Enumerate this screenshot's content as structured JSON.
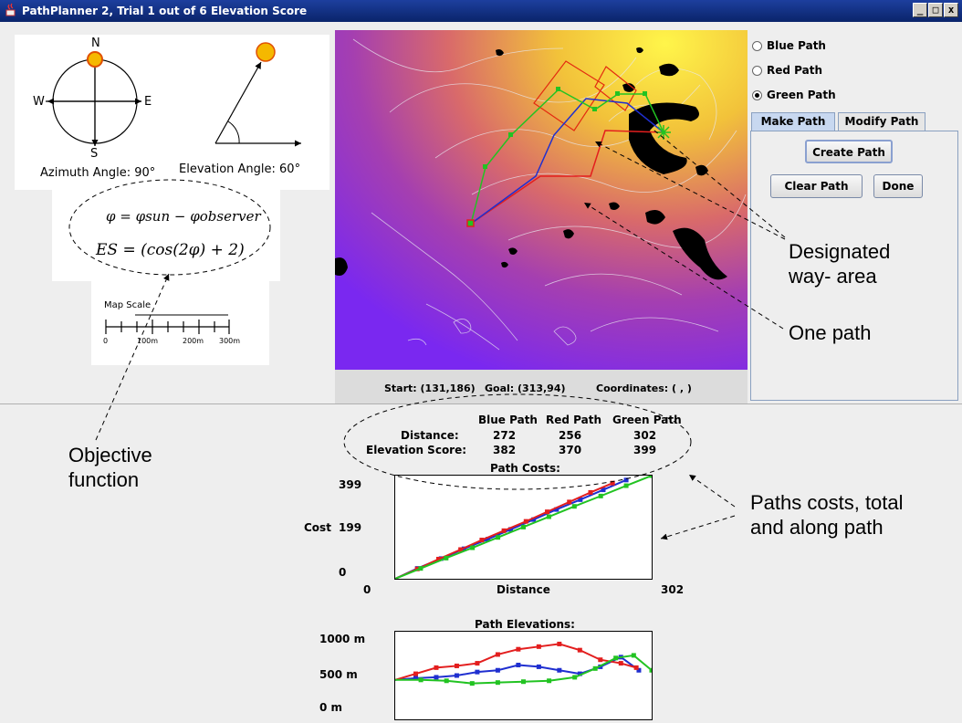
{
  "window": {
    "title": "PathPlanner 2, Trial 1 out of 6 Elevation Score",
    "minimize": "_",
    "maximize": "□",
    "close": "x"
  },
  "sun_diagram": {
    "north": "N",
    "south": "S",
    "east": "E",
    "west": "W",
    "azimuth_label": "Azimuth Angle: 90°",
    "elevation_label": "Elevation Angle: 60°"
  },
  "formula": {
    "line1": "φ = φsun − φobserver",
    "line2": "ES = (cos(2φ) + 2)"
  },
  "map_scale": {
    "title": "Map Scale",
    "ticks": [
      "0",
      "100m",
      "200m",
      "300m"
    ]
  },
  "status": {
    "start": "Start: (131,186)",
    "goal": "Goal: (313,94)",
    "coordinates": "Coordinates: ( , )"
  },
  "controls": {
    "radios": [
      {
        "label": "Blue Path",
        "selected": false
      },
      {
        "label": "Red Path",
        "selected": false
      },
      {
        "label": "Green Path",
        "selected": true
      }
    ],
    "tabs": [
      {
        "label": "Make Path",
        "active": true
      },
      {
        "label": "Modify Path",
        "active": false
      }
    ],
    "create_button": "Create Path",
    "clear_button": "Clear Path",
    "done_button": "Done"
  },
  "annotations": {
    "waypoint_area": [
      "Designated",
      "way- area"
    ],
    "one_path": "One path",
    "objective": [
      "Objective",
      "function"
    ],
    "costs": [
      "Paths costs, total",
      "and along path"
    ]
  },
  "summary": {
    "columns": [
      "Blue Path",
      "Red Path",
      "Green Path"
    ],
    "rows": [
      {
        "label": "Distance:",
        "values": [
          "272",
          "256",
          "302"
        ]
      },
      {
        "label": "Elevation Score:",
        "values": [
          "382",
          "370",
          "399"
        ]
      }
    ]
  },
  "cost_chart": {
    "title": "Path Costs:",
    "ylabel": "Cost",
    "xlabel": "Distance",
    "y_ticks": [
      "399",
      "199",
      "0"
    ],
    "x_min": "0",
    "x_max": "302"
  },
  "elev_chart": {
    "title": "Path Elevations:",
    "y_ticks": [
      "1000 m",
      "500 m",
      "0 m"
    ]
  },
  "colors": {
    "blue": "#1f2fd0",
    "red": "#e31e1e",
    "green": "#22c322",
    "titlebar": "#0a246a"
  },
  "chart_data": [
    {
      "type": "line",
      "title": "Path Costs:",
      "xlabel": "Distance",
      "ylabel": "Cost",
      "xlim": [
        0,
        302
      ],
      "ylim": [
        0,
        399
      ],
      "series": [
        {
          "name": "Blue Path",
          "x": [
            0,
            26,
            54,
            81,
            109,
            136,
            163,
            190,
            218,
            245,
            272
          ],
          "y": [
            0,
            40,
            78,
            116,
            153,
            191,
            229,
            268,
            306,
            344,
            382
          ]
        },
        {
          "name": "Red Path",
          "x": [
            0,
            26,
            51,
            77,
            102,
            128,
            154,
            179,
            205,
            230,
            256
          ],
          "y": [
            0,
            38,
            76,
            113,
            150,
            186,
            222,
            259,
            297,
            334,
            370
          ]
        },
        {
          "name": "Green Path",
          "x": [
            0,
            30,
            60,
            91,
            121,
            151,
            181,
            211,
            242,
            272,
            302
          ],
          "y": [
            0,
            40,
            80,
            120,
            160,
            200,
            240,
            280,
            320,
            360,
            399
          ]
        }
      ]
    },
    {
      "type": "line",
      "title": "Path Elevations:",
      "ylabel": "m",
      "ylim": [
        0,
        1000
      ],
      "series": [
        {
          "name": "Blue Path",
          "x": [
            0,
            0.08,
            0.16,
            0.24,
            0.32,
            0.4,
            0.48,
            0.56,
            0.64,
            0.72,
            0.8,
            0.88,
            0.95
          ],
          "y": [
            450,
            470,
            480,
            500,
            540,
            560,
            620,
            600,
            560,
            520,
            600,
            710,
            560
          ]
        },
        {
          "name": "Red Path",
          "x": [
            0,
            0.08,
            0.16,
            0.24,
            0.32,
            0.4,
            0.48,
            0.56,
            0.64,
            0.72,
            0.8,
            0.88,
            0.94
          ],
          "y": [
            450,
            520,
            590,
            610,
            640,
            740,
            800,
            830,
            860,
            790,
            680,
            640,
            590
          ]
        },
        {
          "name": "Green Path",
          "x": [
            0,
            0.1,
            0.2,
            0.3,
            0.4,
            0.5,
            0.6,
            0.7,
            0.78,
            0.86,
            0.93,
            1.0
          ],
          "y": [
            450,
            450,
            440,
            410,
            420,
            430,
            440,
            480,
            580,
            700,
            730,
            560
          ]
        }
      ]
    }
  ]
}
